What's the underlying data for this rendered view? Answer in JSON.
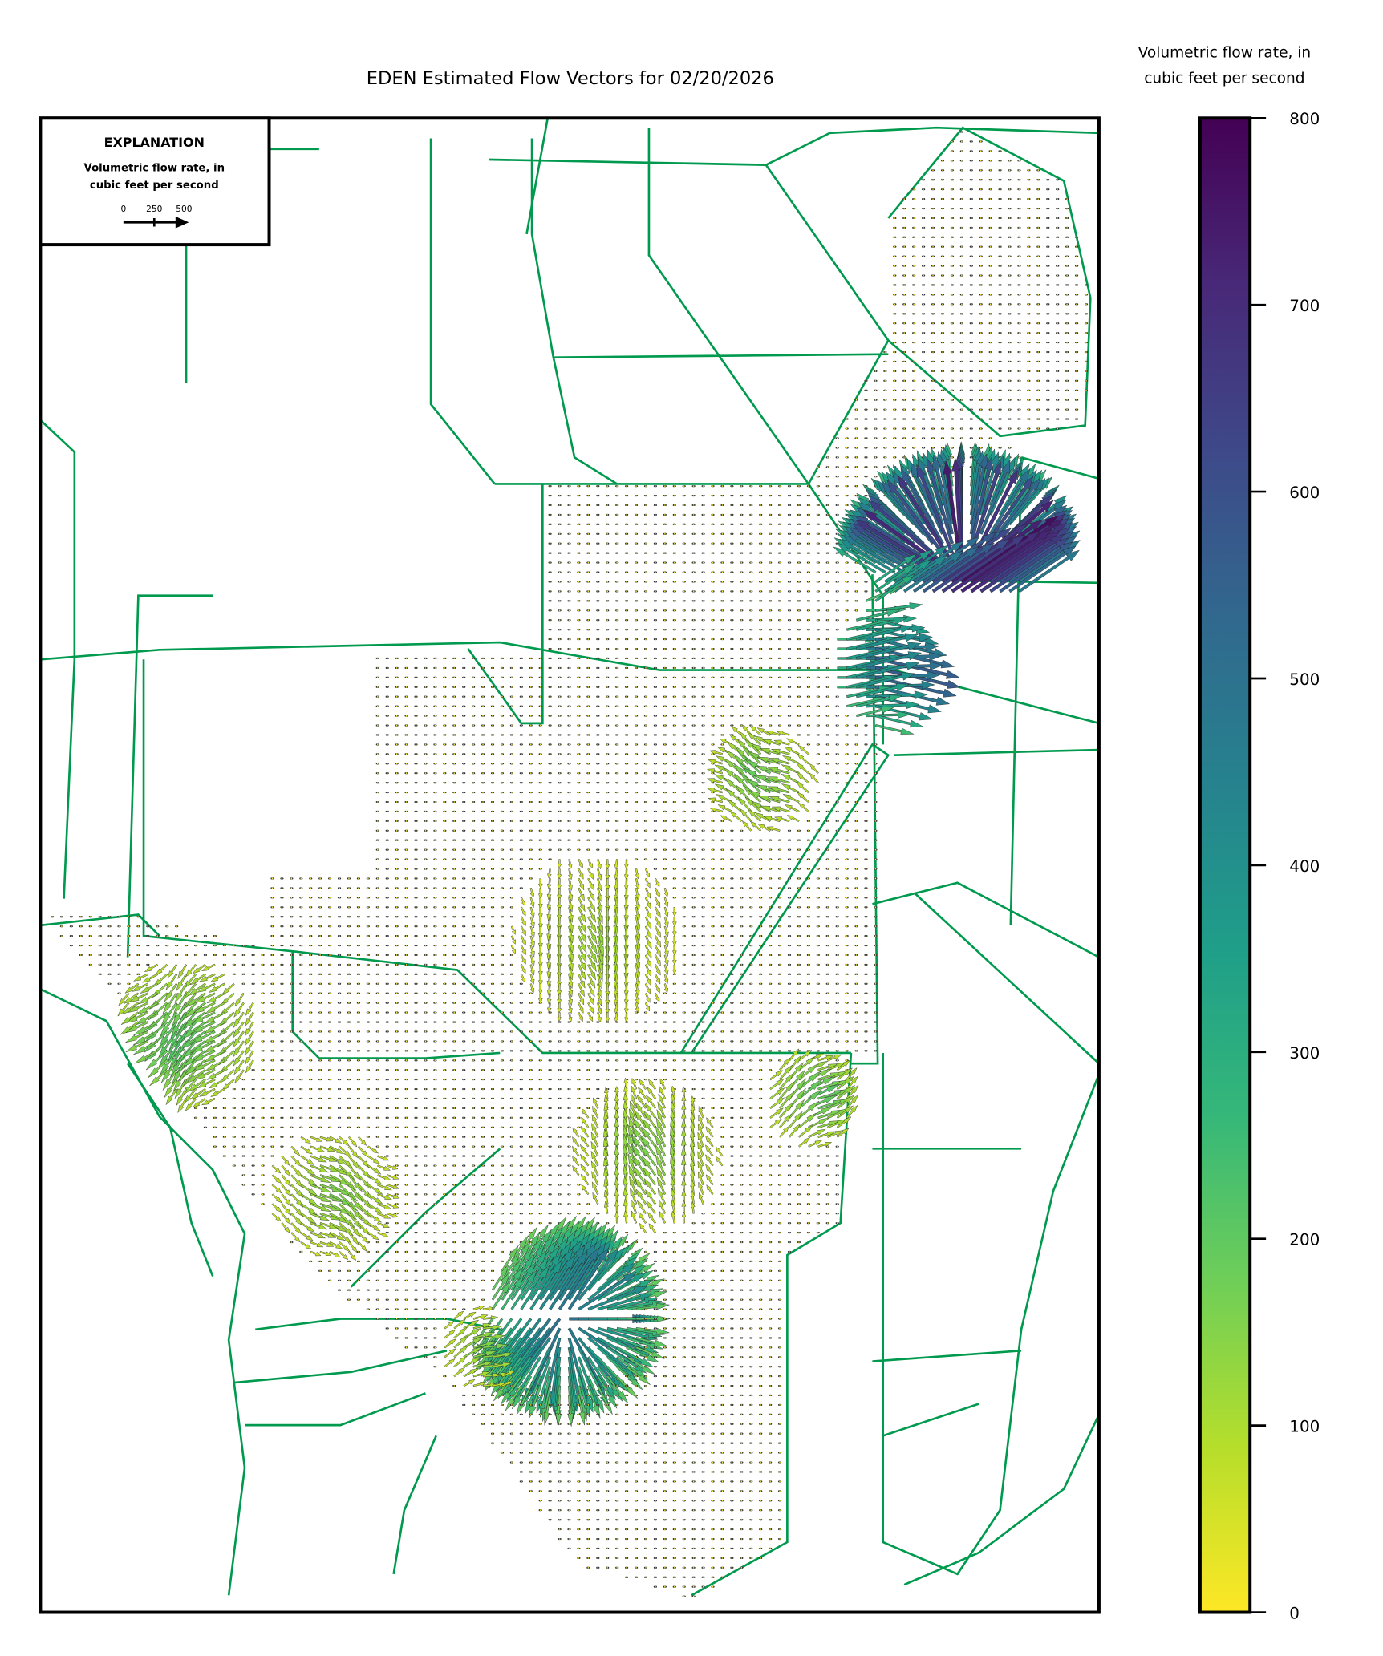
{
  "chart_data": {
    "type": "quiver",
    "title": "EDEN Estimated Flow Vectors for 02/20/2026",
    "colorbar": {
      "label_line1": "Volumetric flow rate, in",
      "label_line2": "cubic feet per second",
      "range": [
        0,
        800
      ],
      "ticks": [
        "0",
        "100",
        "200",
        "300",
        "400",
        "500",
        "600",
        "700",
        "800"
      ],
      "colormap": "viridis_r",
      "colors": [
        "#fde725",
        "#b5de2b",
        "#6ece58",
        "#35b779",
        "#1f9e89",
        "#26828e",
        "#31688e",
        "#3e4989",
        "#482878",
        "#440154"
      ]
    },
    "legend": {
      "title": "EXPLANATION",
      "line1": "Volumetric flow rate, in",
      "line2": "cubic feet per second",
      "scale_labels": [
        "0",
        "250",
        "500"
      ],
      "placement": "top-left"
    },
    "map_line_color": "#009a4e",
    "max_vector_magnitude_approx": 800
  }
}
